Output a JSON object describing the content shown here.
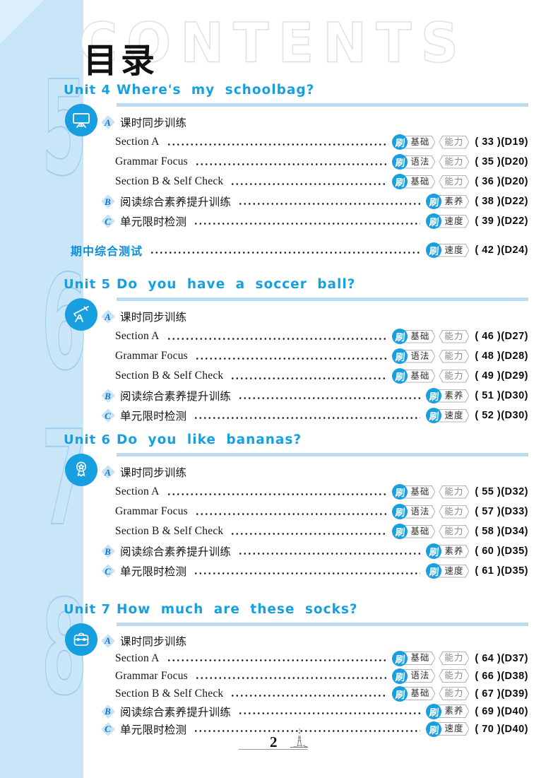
{
  "page": {
    "watermark": "CONTENTS",
    "title": "目录",
    "page_number": "2"
  },
  "colors": {
    "accent": "#189fdf",
    "sidebar": "#c9e5f8",
    "title_bar": "#b9dcf2",
    "midterm_blue": "#0e8ed9",
    "number_outline": "#9fcdeb"
  },
  "shua_badge": "刷",
  "units": [
    {
      "label": "Unit 4",
      "title": "Where's my schoolbag?",
      "icon": "blackboard-icon",
      "big_number": "5",
      "group_a": {
        "badge": "A",
        "label": "课时同步训练"
      },
      "entries": [
        {
          "label": "Section A",
          "tags": [
            "基础",
            "能力"
          ],
          "page": "33",
          "dpage": "D19"
        },
        {
          "label": "Grammar Focus",
          "tags": [
            "语法",
            "能力"
          ],
          "page": "35",
          "dpage": "D20"
        },
        {
          "label": "Section B & Self Check",
          "tags": [
            "基础",
            "能力"
          ],
          "page": "36",
          "dpage": "D20"
        }
      ],
      "extra_rows": [
        {
          "badge": "B",
          "label": "阅读综合素养提升训练",
          "tags": [
            "素养"
          ],
          "page": "38",
          "dpage": "D22"
        },
        {
          "badge": "C",
          "label": "单元限时检测",
          "tags": [
            "速度"
          ],
          "page": "39",
          "dpage": "D22"
        }
      ]
    },
    {
      "label": "Unit 5",
      "title": "Do you have a soccer ball?",
      "icon": "telescope-icon",
      "big_number": "6",
      "group_a": {
        "badge": "A",
        "label": "课时同步训练"
      },
      "entries": [
        {
          "label": "Section A",
          "tags": [
            "基础",
            "能力"
          ],
          "page": "46",
          "dpage": "D27"
        },
        {
          "label": "Grammar Focus",
          "tags": [
            "语法",
            "能力"
          ],
          "page": "48",
          "dpage": "D28"
        },
        {
          "label": "Section B & Self Check",
          "tags": [
            "基础",
            "能力"
          ],
          "page": "49",
          "dpage": "D29"
        }
      ],
      "extra_rows": [
        {
          "badge": "B",
          "label": "阅读综合素养提升训练",
          "tags": [
            "素养"
          ],
          "page": "51",
          "dpage": "D30"
        },
        {
          "badge": "C",
          "label": "单元限时检测",
          "tags": [
            "速度"
          ],
          "page": "52",
          "dpage": "D30"
        }
      ]
    },
    {
      "label": "Unit 6",
      "title": "Do you like bananas?",
      "icon": "medal-icon",
      "big_number": "7",
      "group_a": {
        "badge": "A",
        "label": "课时同步训练"
      },
      "entries": [
        {
          "label": "Section A",
          "tags": [
            "基础",
            "能力"
          ],
          "page": "55",
          "dpage": "D32"
        },
        {
          "label": "Grammar Focus",
          "tags": [
            "语法",
            "能力"
          ],
          "page": "57",
          "dpage": "D33"
        },
        {
          "label": "Section B & Self Check",
          "tags": [
            "基础",
            "能力"
          ],
          "page": "58",
          "dpage": "D34"
        }
      ],
      "extra_rows": [
        {
          "badge": "B",
          "label": "阅读综合素养提升训练",
          "tags": [
            "素养"
          ],
          "page": "60",
          "dpage": "D35"
        },
        {
          "badge": "C",
          "label": "单元限时检测",
          "tags": [
            "速度"
          ],
          "page": "61",
          "dpage": "D35"
        }
      ]
    },
    {
      "label": "Unit 7",
      "title": "How much are these socks?",
      "icon": "schoolbag-icon",
      "big_number": "8",
      "group_a": {
        "badge": "A",
        "label": "课时同步训练"
      },
      "entries": [
        {
          "label": "Section A",
          "tags": [
            "基础",
            "能力"
          ],
          "page": "64",
          "dpage": "D37"
        },
        {
          "label": "Grammar Focus",
          "tags": [
            "语法",
            "能力"
          ],
          "page": "66",
          "dpage": "D38"
        },
        {
          "label": "Section B & Self Check",
          "tags": [
            "基础",
            "能力"
          ],
          "page": "67",
          "dpage": "D39"
        }
      ],
      "extra_rows": [
        {
          "badge": "B",
          "label": "阅读综合素养提升训练",
          "tags": [
            "素养"
          ],
          "page": "69",
          "dpage": "D40"
        },
        {
          "badge": "C",
          "label": "单元限时检测",
          "tags": [
            "速度"
          ],
          "page": "70",
          "dpage": "D40"
        }
      ]
    }
  ],
  "midterm": {
    "label": "期中综合测试",
    "tags": [
      "速度"
    ],
    "page": "42",
    "dpage": "D24"
  },
  "layout_tops": {
    "units": [
      117,
      392,
      612,
      852
    ],
    "midterm": 340
  }
}
